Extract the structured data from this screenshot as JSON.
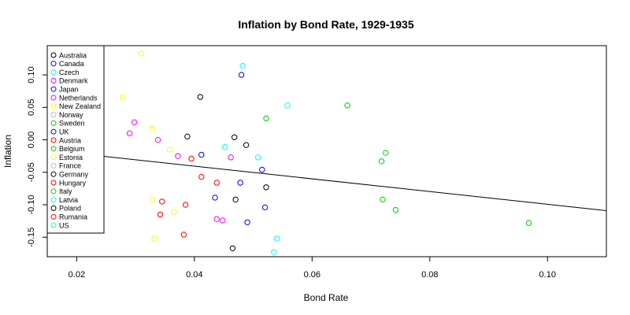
{
  "chart_data": {
    "type": "scatter",
    "title": "Inflation by Bond Rate, 1929-1935",
    "xlabel": "Bond Rate",
    "ylabel": "Inflation",
    "xlim": [
      0.015,
      0.11
    ],
    "ylim": [
      -0.18,
      0.145
    ],
    "x_ticks": [
      0.02,
      0.04,
      0.06,
      0.08,
      0.1
    ],
    "x_tick_labels": [
      "0.02",
      "0.04",
      "0.06",
      "0.08",
      "0.10"
    ],
    "y_ticks": [
      -0.15,
      -0.1,
      -0.05,
      0.0,
      0.05,
      0.1
    ],
    "y_tick_labels": [
      "-0.15",
      "-0.10",
      "-0.05",
      "0.00",
      "0.05",
      "0.10"
    ],
    "grid": false,
    "legend_position": "top-left",
    "trend_line": {
      "x": [
        0.015,
        0.11
      ],
      "y": [
        -0.016,
        -0.109
      ],
      "color": "#000000"
    },
    "series": [
      {
        "name": "Australia",
        "color": "#000000",
        "points": [
          [
            0.0388,
            0.005
          ],
          [
            0.041,
            0.066
          ]
        ]
      },
      {
        "name": "Canada",
        "color": "#0000FF",
        "points": [
          [
            0.048,
            0.1
          ],
          [
            0.0412,
            -0.023
          ]
        ]
      },
      {
        "name": "Czech",
        "color": "#00FFFF",
        "points": [
          [
            0.0482,
            0.114
          ],
          [
            0.0452,
            -0.011
          ],
          [
            0.0558,
            0.053
          ]
        ]
      },
      {
        "name": "Denmark",
        "color": "#FF00FF",
        "points": [
          [
            0.0298,
            0.027
          ],
          [
            0.0338,
            0.0
          ],
          [
            0.0462,
            -0.027
          ],
          [
            0.0372,
            -0.025
          ]
        ]
      },
      {
        "name": "Japan",
        "color": "#0000FF",
        "points": [
          [
            0.0515,
            -0.046
          ],
          [
            0.0478,
            -0.066
          ],
          [
            0.0435,
            -0.089
          ]
        ]
      },
      {
        "name": "Netherlands",
        "color": "#FF00FF",
        "points": [
          [
            0.029,
            0.01
          ],
          [
            0.0438,
            -0.122
          ],
          [
            0.0448,
            -0.124
          ]
        ]
      },
      {
        "name": "New Zealand",
        "color": "#FFFF00",
        "points": [
          [
            0.031,
            0.133
          ],
          [
            0.0278,
            0.066
          ],
          [
            0.0328,
            0.017
          ],
          [
            0.0358,
            -0.015
          ]
        ]
      },
      {
        "name": "Norway",
        "color": "#BEBEBE",
        "points": []
      },
      {
        "name": "Sweden",
        "color": "#00CD00",
        "points": [
          [
            0.066,
            0.053
          ],
          [
            0.0522,
            0.033
          ],
          [
            0.0718,
            -0.033
          ],
          [
            0.0725,
            -0.02
          ]
        ]
      },
      {
        "name": "UK",
        "color": "#0000FF",
        "points": [
          [
            0.049,
            -0.127
          ],
          [
            0.052,
            -0.104
          ]
        ]
      },
      {
        "name": "Austria",
        "color": "#FF0000",
        "points": [
          [
            0.0395,
            -0.029
          ],
          [
            0.0412,
            -0.057
          ],
          [
            0.0438,
            -0.066
          ]
        ]
      },
      {
        "name": "Belgium",
        "color": "#00CD00",
        "points": [
          [
            0.072,
            -0.092
          ],
          [
            0.0742,
            -0.108
          ],
          [
            0.0968,
            -0.128
          ]
        ]
      },
      {
        "name": "Estonia",
        "color": "#FFFF00",
        "points": [
          [
            0.0328,
            -0.092
          ],
          [
            0.0365,
            -0.111
          ],
          [
            0.0332,
            -0.152
          ]
        ]
      },
      {
        "name": "France",
        "color": "#BEBEBE",
        "points": []
      },
      {
        "name": "Germany",
        "color": "#000000",
        "points": [
          [
            0.0468,
            0.004
          ],
          [
            0.0488,
            -0.008
          ],
          [
            0.047,
            -0.092
          ]
        ]
      },
      {
        "name": "Hungary",
        "color": "#FF0000",
        "points": [
          [
            0.0345,
            -0.095
          ],
          [
            0.0385,
            -0.1
          ],
          [
            0.0342,
            -0.115
          ],
          [
            0.0382,
            -0.146
          ]
        ]
      },
      {
        "name": "Italy",
        "color": "#00CD00",
        "points": []
      },
      {
        "name": "Latvia",
        "color": "#00FFFF",
        "points": [
          [
            0.0508,
            -0.027
          ],
          [
            0.054,
            -0.152
          ],
          [
            0.0535,
            -0.173
          ]
        ]
      },
      {
        "name": "Poland",
        "color": "#000000",
        "points": [
          [
            0.0522,
            -0.073
          ],
          [
            0.0465,
            -0.167
          ]
        ]
      },
      {
        "name": "Rumania",
        "color": "#FF0000",
        "points": []
      },
      {
        "name": "US",
        "color": "#00FFFF",
        "points": []
      }
    ]
  }
}
